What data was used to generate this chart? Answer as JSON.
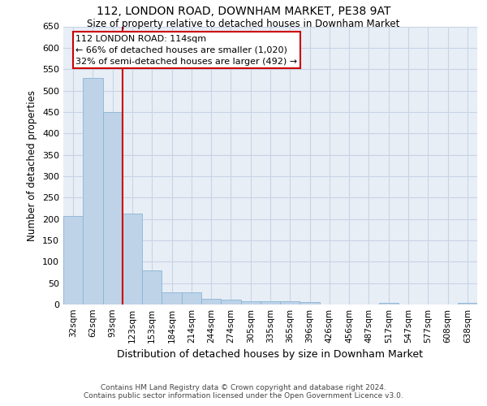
{
  "title": "112, LONDON ROAD, DOWNHAM MARKET, PE38 9AT",
  "subtitle": "Size of property relative to detached houses in Downham Market",
  "xlabel": "Distribution of detached houses by size in Downham Market",
  "ylabel": "Number of detached properties",
  "footer_line1": "Contains HM Land Registry data © Crown copyright and database right 2024.",
  "footer_line2": "Contains public sector information licensed under the Open Government Licence v3.0.",
  "categories": [
    "32sqm",
    "62sqm",
    "93sqm",
    "123sqm",
    "153sqm",
    "184sqm",
    "214sqm",
    "244sqm",
    "274sqm",
    "305sqm",
    "335sqm",
    "365sqm",
    "396sqm",
    "426sqm",
    "456sqm",
    "487sqm",
    "517sqm",
    "547sqm",
    "577sqm",
    "608sqm",
    "638sqm"
  ],
  "values": [
    207,
    530,
    450,
    212,
    79,
    28,
    28,
    14,
    11,
    8,
    8,
    8,
    5,
    0,
    0,
    0,
    4,
    0,
    0,
    0,
    4
  ],
  "bar_color": "#bed3e8",
  "bar_edge_color": "#8ab4d4",
  "grid_color": "#c8d4e4",
  "background_color": "#e8eef6",
  "annotation_text": "112 LONDON ROAD: 114sqm\n← 66% of detached houses are smaller (1,020)\n32% of semi-detached houses are larger (492) →",
  "annotation_box_edge": "#cc0000",
  "red_line_color": "#cc0000",
  "ylim": [
    0,
    650
  ],
  "yticks": [
    0,
    50,
    100,
    150,
    200,
    250,
    300,
    350,
    400,
    450,
    500,
    550,
    600,
    650
  ]
}
